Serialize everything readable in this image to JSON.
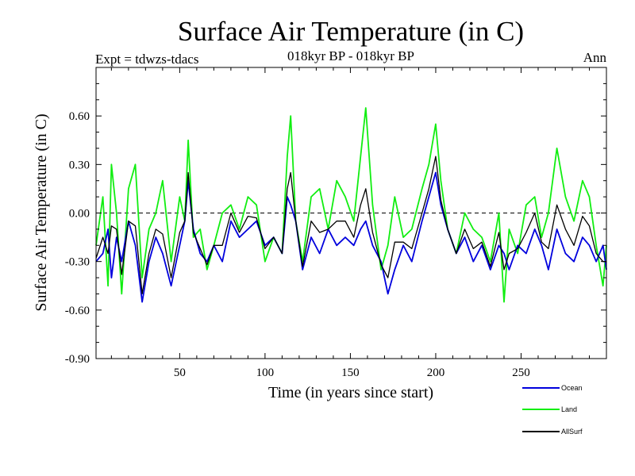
{
  "chart_data": {
    "type": "line",
    "title": "Surface Air Temperature (in C)",
    "subtitle": "018kyr BP - 018kyr BP",
    "expt_label": "Expt = tdwzs-tdacs",
    "season_label": "Ann",
    "xlabel": "Time (in years since start)",
    "ylabel": "Surface Air Temperature (in C)",
    "xlim": [
      1,
      300
    ],
    "ylim": [
      -0.9,
      0.9
    ],
    "xticks": [
      50,
      100,
      150,
      200,
      250
    ],
    "xtick_labels": [
      "50",
      "100",
      "150",
      "200",
      "250"
    ],
    "yticks": [
      -0.9,
      -0.6,
      -0.3,
      0.0,
      0.3,
      0.6
    ],
    "ytick_labels": [
      "-0.90",
      "-0.60",
      "-0.30",
      "0.00",
      "0.30",
      "0.60"
    ],
    "reference_line": 0.0,
    "anchor_years": [
      1,
      5,
      8,
      10,
      13,
      16,
      20,
      24,
      28,
      32,
      36,
      40,
      45,
      50,
      53,
      55,
      58,
      62,
      66,
      70,
      75,
      80,
      85,
      90,
      95,
      100,
      105,
      110,
      113,
      115,
      118,
      122,
      127,
      132,
      137,
      142,
      147,
      152,
      156,
      159,
      163,
      168,
      172,
      176,
      181,
      186,
      192,
      196,
      200,
      203,
      207,
      212,
      217,
      222,
      227,
      232,
      237,
      240,
      243,
      248,
      253,
      258,
      262,
      266,
      271,
      276,
      281,
      286,
      290,
      294,
      298,
      300
    ],
    "series": [
      {
        "name": "Ocean",
        "color": "#0000dd",
        "values": [
          -0.3,
          -0.25,
          -0.1,
          -0.4,
          -0.15,
          -0.3,
          -0.05,
          -0.2,
          -0.55,
          -0.3,
          -0.15,
          -0.25,
          -0.45,
          -0.2,
          -0.05,
          0.2,
          -0.1,
          -0.25,
          -0.3,
          -0.2,
          -0.3,
          -0.05,
          -0.15,
          -0.1,
          -0.05,
          -0.2,
          -0.15,
          -0.25,
          0.1,
          0.05,
          -0.05,
          -0.35,
          -0.15,
          -0.25,
          -0.1,
          -0.2,
          -0.15,
          -0.2,
          -0.1,
          -0.05,
          -0.2,
          -0.3,
          -0.5,
          -0.35,
          -0.2,
          -0.3,
          -0.05,
          0.1,
          0.25,
          0.05,
          -0.1,
          -0.25,
          -0.15,
          -0.3,
          -0.2,
          -0.35,
          -0.2,
          -0.25,
          -0.35,
          -0.2,
          -0.25,
          -0.1,
          -0.2,
          -0.35,
          -0.1,
          -0.25,
          -0.3,
          -0.15,
          -0.2,
          -0.3,
          -0.2,
          -0.35
        ]
      },
      {
        "name": "Land",
        "color": "#11ee11",
        "values": [
          -0.2,
          0.1,
          -0.45,
          0.3,
          0.0,
          -0.5,
          0.15,
          0.3,
          -0.4,
          -0.1,
          0.0,
          0.2,
          -0.3,
          0.1,
          -0.05,
          0.45,
          -0.15,
          -0.1,
          -0.35,
          -0.2,
          0.0,
          0.05,
          -0.1,
          0.1,
          0.05,
          -0.3,
          -0.15,
          -0.25,
          0.35,
          0.6,
          -0.05,
          -0.3,
          0.1,
          0.15,
          -0.1,
          0.2,
          0.1,
          -0.05,
          0.35,
          0.65,
          0.05,
          -0.35,
          -0.2,
          0.1,
          -0.15,
          -0.1,
          0.15,
          0.3,
          0.55,
          0.2,
          -0.1,
          -0.25,
          0.0,
          -0.1,
          -0.15,
          -0.3,
          0.0,
          -0.55,
          -0.1,
          -0.25,
          0.05,
          0.1,
          -0.15,
          0.0,
          0.4,
          0.1,
          -0.05,
          0.2,
          0.1,
          -0.2,
          -0.45,
          -0.2
        ]
      },
      {
        "name": "AllSurf",
        "color": "#000000",
        "values": [
          -0.28,
          -0.15,
          -0.25,
          -0.08,
          -0.1,
          -0.38,
          -0.05,
          -0.08,
          -0.5,
          -0.25,
          -0.1,
          -0.13,
          -0.4,
          -0.12,
          -0.05,
          0.25,
          -0.12,
          -0.22,
          -0.32,
          -0.2,
          -0.2,
          0.0,
          -0.12,
          -0.02,
          -0.03,
          -0.22,
          -0.15,
          -0.25,
          0.15,
          0.25,
          -0.05,
          -0.33,
          -0.05,
          -0.12,
          -0.1,
          -0.05,
          -0.05,
          -0.15,
          0.05,
          0.15,
          -0.12,
          -0.32,
          -0.4,
          -0.18,
          -0.18,
          -0.22,
          0.0,
          0.15,
          0.35,
          0.08,
          -0.1,
          -0.25,
          -0.1,
          -0.22,
          -0.18,
          -0.33,
          -0.12,
          -0.35,
          -0.25,
          -0.22,
          -0.12,
          0.0,
          -0.18,
          -0.22,
          0.05,
          -0.1,
          -0.2,
          -0.02,
          -0.08,
          -0.25,
          -0.3,
          -0.3
        ]
      }
    ],
    "legend": [
      {
        "label": "Ocean",
        "color": "#0000dd"
      },
      {
        "label": "Land",
        "color": "#11ee11"
      },
      {
        "label": "AllSurf",
        "color": "#000000"
      }
    ]
  }
}
